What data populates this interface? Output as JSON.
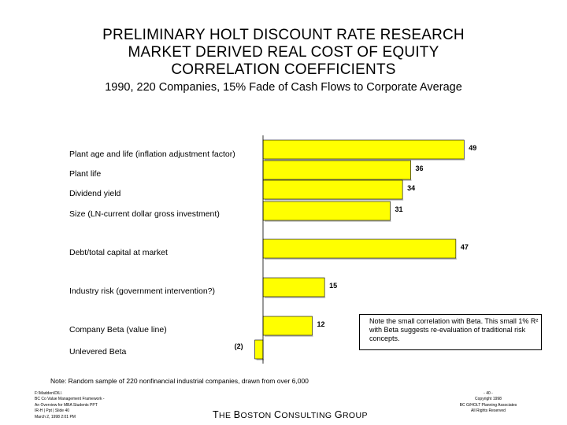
{
  "title_lines": [
    "PRELIMINARY HOLT DISCOUNT RATE RESEARCH",
    "MARKET DERIVED REAL COST OF EQUITY",
    "CORRELATION COEFFICIENTS"
  ],
  "subtitle": "1990, 220 Companies, 15% Fade of Cash Flows to Corporate Average",
  "chart_data": {
    "type": "bar",
    "orientation": "horizontal",
    "categories": [
      "Plant age and life (inflation adjustment factor)",
      "Plant life",
      "Dividend yield",
      "Size (LN-current dollar gross investment)",
      "Debt/total capital at market",
      "Industry risk (government intervention?)",
      "Company Beta (value line)",
      "Unlevered Beta"
    ],
    "values": [
      49,
      36,
      34,
      31,
      47,
      15,
      12,
      -2
    ],
    "value_labels": [
      "49",
      "36",
      "34",
      "31",
      "47",
      "15",
      "12",
      "(2)"
    ],
    "bar_color": "#ffff00"
  },
  "note_box": "Note the small correlation with Beta. This small 1% R² with Beta suggests re-evaluation of traditional risk concepts.",
  "footnote": "Note: Random sample of 220 nonfinancial industrial companies, drawn from over 6,000",
  "left_footer": [
    "F:\\Madden\\DIL\\",
    "BC Co Value Management Framework -",
    "An Overview for MBA Students PPT",
    "IR-H | Ppt | Slide 40",
    "March 2, 1998 2:01 PM"
  ],
  "company_name": {
    "t": "T",
    "he": "HE ",
    "b": "B",
    "oston": "OSTON ",
    "c": "C",
    "onsulting": "ONSULTING ",
    "g": "G",
    "roup": "ROUP"
  },
  "right_footer": [
    "- 40 -",
    "Copyright 1998",
    "BC G/HOLT Planning Associates",
    "All Rights Reserved"
  ]
}
